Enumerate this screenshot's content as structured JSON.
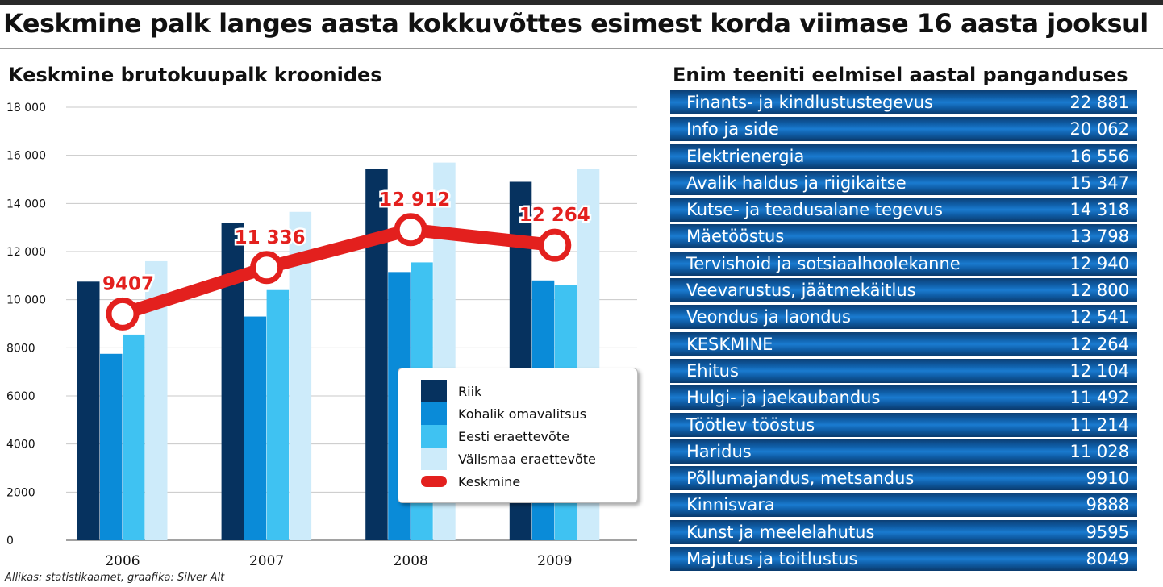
{
  "title": "Keskmine palk langes aasta kokkuvõttes esimest korda viimase 16 aasta jooksul",
  "left_title": "Keskmine brutokuupalk kroonides",
  "right_title": "Enim teeniti eelmisel aastal panganduses",
  "source": "Allikas: statistikaamet, graafika: Silver Alt",
  "colors": {
    "riik": "#06325f",
    "kohalik": "#0a8bd8",
    "eesti": "#3fc2f2",
    "valismaa": "#cdebfa",
    "keskmine": "#e3201e",
    "grid": "#c8c8c8"
  },
  "chart_data": [
    {
      "type": "bar",
      "categories": [
        "2006",
        "2007",
        "2008",
        "2009"
      ],
      "ylim": [
        0,
        18000
      ],
      "y_ticks": [
        "0",
        "2000",
        "4000",
        "6000",
        "8000",
        "10 000",
        "12 000",
        "14 000",
        "16 000",
        "18 000"
      ],
      "grid": true,
      "legend_position": "bottom-right",
      "series": [
        {
          "name": "Riik",
          "values": [
            10750,
            13200,
            15450,
            14900
          ]
        },
        {
          "name": "Kohalik omavalitsus",
          "values": [
            7750,
            9300,
            11150,
            10800
          ]
        },
        {
          "name": "Eesti eraettevõte",
          "values": [
            8550,
            10400,
            11550,
            10600
          ]
        },
        {
          "name": "Välismaa eraettevõte",
          "values": [
            11600,
            13650,
            15700,
            15450
          ]
        }
      ],
      "line": {
        "name": "Keskmine",
        "values": [
          9407,
          11336,
          12912,
          12264
        ],
        "labels": [
          "9407",
          "11 336",
          "12 912",
          "12 264"
        ]
      }
    },
    {
      "type": "table",
      "rows": [
        {
          "label": "Finants- ja kindlustustegevus",
          "value": 22881,
          "display": "22 881"
        },
        {
          "label": "Info ja side",
          "value": 20062,
          "display": "20 062"
        },
        {
          "label": "Elektrienergia",
          "value": 16556,
          "display": "16 556"
        },
        {
          "label": "Avalik haldus ja riigikaitse",
          "value": 15347,
          "display": "15 347"
        },
        {
          "label": "Kutse- ja teadusalane tegevus",
          "value": 14318,
          "display": "14 318"
        },
        {
          "label": "Mäetööstus",
          "value": 13798,
          "display": "13 798"
        },
        {
          "label": "Tervishoid ja sotsiaalhoolekanne",
          "value": 12940,
          "display": "12 940"
        },
        {
          "label": "Veevarustus, jäätmekäitlus",
          "value": 12800,
          "display": "12 800"
        },
        {
          "label": "Veondus ja laondus",
          "value": 12541,
          "display": "12 541"
        },
        {
          "label": "KESKMINE",
          "value": 12264,
          "display": "12 264"
        },
        {
          "label": "Ehitus",
          "value": 12104,
          "display": "12 104"
        },
        {
          "label": "Hulgi- ja jaekaubandus",
          "value": 11492,
          "display": "11 492"
        },
        {
          "label": "Töötlev tööstus",
          "value": 11214,
          "display": "11 214"
        },
        {
          "label": "Haridus",
          "value": 11028,
          "display": "11 028"
        },
        {
          "label": "Põllumajandus, metsandus",
          "value": 9910,
          "display": "9910"
        },
        {
          "label": "Kinnisvara",
          "value": 9888,
          "display": "9888"
        },
        {
          "label": "Kunst ja meelelahutus",
          "value": 9595,
          "display": "9595"
        },
        {
          "label": "Majutus ja toitlustus",
          "value": 8049,
          "display": "8049"
        }
      ]
    }
  ]
}
